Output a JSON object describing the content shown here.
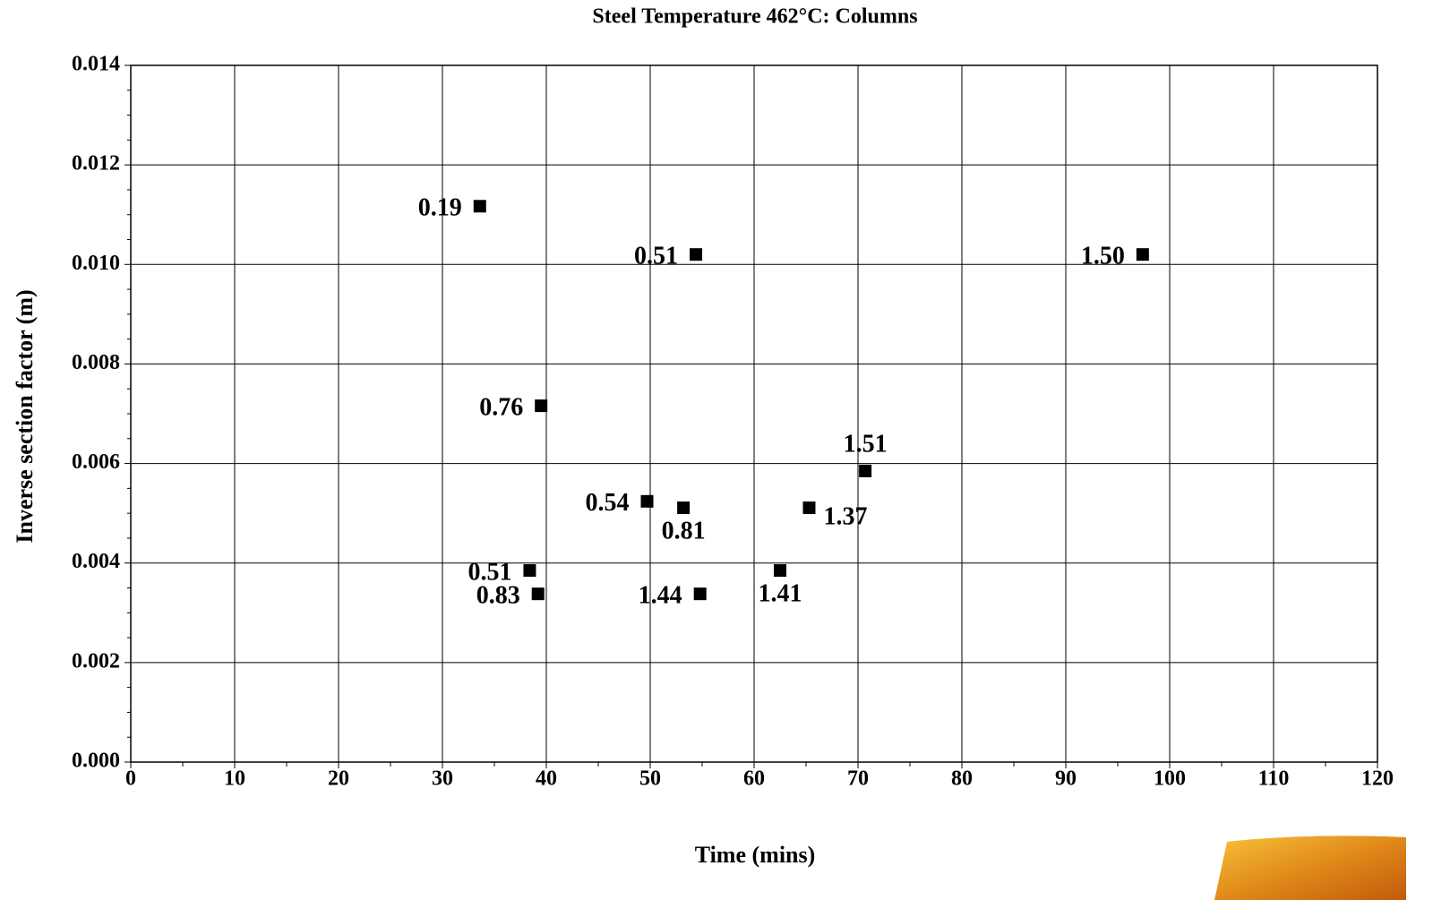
{
  "chart_data": {
    "type": "scatter",
    "title": "Steel Temperature 462°C: Columns",
    "x_label": "Time (mins)",
    "y_label": "Inverse section factor (m)",
    "series": [
      {
        "name": null,
        "color": "#000000",
        "x": [
          33.6,
          54.4,
          97.4,
          39.5,
          70.7,
          49.7,
          53.2,
          65.3,
          38.4,
          39.2,
          54.8,
          62.5
        ],
        "values": [
          0.01117,
          0.0102,
          0.0102,
          0.00716,
          0.00585,
          0.00524,
          0.00511,
          0.00511,
          0.00385,
          0.00338,
          0.00338,
          0.00385
        ],
        "point_labels": [
          "0.19",
          "0.51",
          "1.50",
          "0.76",
          "1.51",
          "0.54",
          "0.81",
          "1.37",
          "0.51",
          "0.83",
          "1.44",
          "1.41"
        ]
      }
    ],
    "xlim": [
      0,
      120
    ],
    "xticks": [
      0,
      10,
      20,
      30,
      40,
      50,
      60,
      70,
      80,
      90,
      100,
      110,
      120
    ],
    "ylim": [
      0,
      0.014
    ],
    "yticks": [
      {
        "value": 0,
        "label": "0.000"
      },
      {
        "value": 0.002,
        "label": "0.002"
      },
      {
        "value": 0.004,
        "label": "0.004"
      },
      {
        "value": 0.006,
        "label": "0.006"
      },
      {
        "value": 0.008,
        "label": "0.008"
      },
      {
        "value": 0.01,
        "label": "0.010"
      },
      {
        "value": 0.012,
        "label": "0.012"
      },
      {
        "value": 0.014,
        "label": "0.014"
      }
    ],
    "grid": true
  }
}
